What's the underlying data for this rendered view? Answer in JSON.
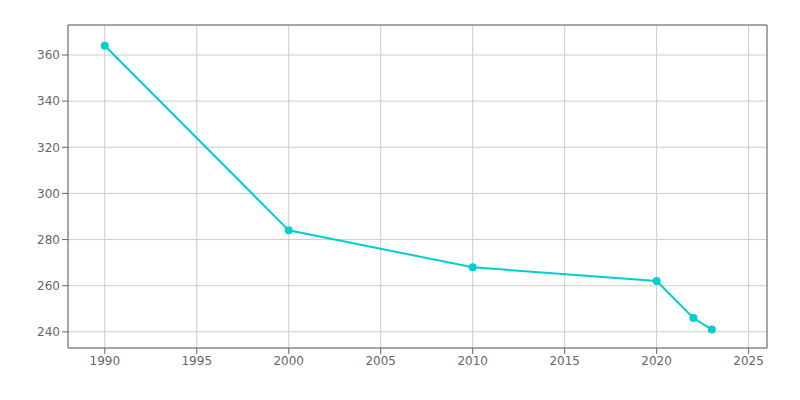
{
  "chart_data": {
    "type": "line",
    "x": [
      1990,
      2000,
      2010,
      2020,
      2022,
      2023
    ],
    "values": [
      364,
      284,
      268,
      262,
      246,
      241
    ],
    "color": "#00CED1",
    "marker": "circle",
    "xlim": [
      1988,
      2026
    ],
    "xticks": [
      1990,
      1995,
      2000,
      2005,
      2010,
      2015,
      2020,
      2025
    ],
    "ylim": [
      233,
      373
    ],
    "yticks": [
      240,
      260,
      280,
      300,
      320,
      340,
      360
    ],
    "grid": true
  }
}
